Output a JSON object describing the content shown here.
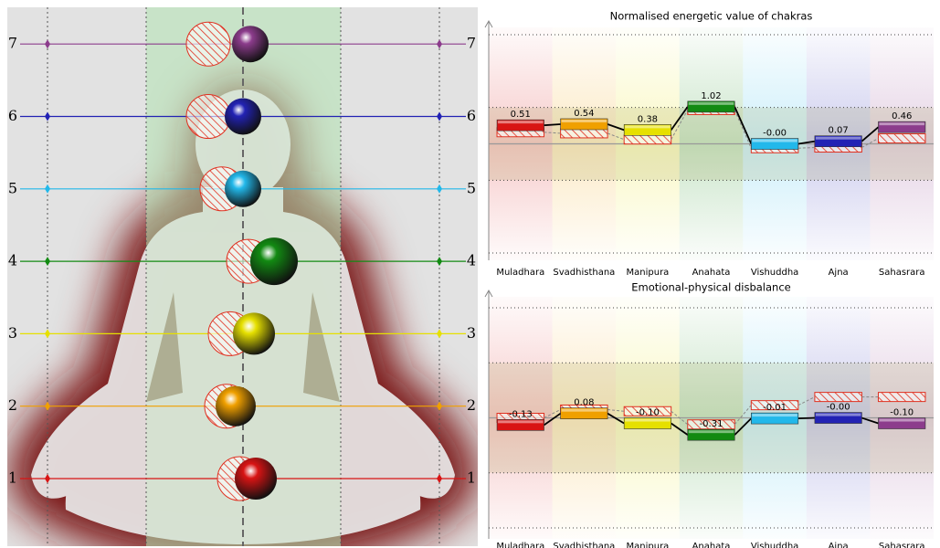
{
  "figure": {
    "levels": [
      1,
      2,
      3,
      4,
      5,
      6,
      7
    ]
  },
  "chart_data": [
    {
      "type": "bar",
      "title": "Normalised energetic value of chakras",
      "categories": [
        "Muladhara",
        "Svadhisthana",
        "Manipura",
        "Anahata",
        "Vishuddha",
        "Ajna",
        "Sahasrara"
      ],
      "colors": [
        "#d81414",
        "#f0a000",
        "#e6e000",
        "#128a12",
        "#22b8ea",
        "#2222b4",
        "#8c3c8c"
      ],
      "series": [
        {
          "values": [
            0.51,
            0.54,
            0.38,
            1.02,
            -0.001,
            0.07,
            0.46
          ],
          "value_labels": [
            "0.51",
            "0.54",
            "0.38",
            "1.02",
            "-0.00",
            "0.07",
            "0.46"
          ]
        },
        {
          "style": "hatched",
          "values": [
            0.32,
            0.29,
            0.12,
            0.93,
            -0.12,
            -0.1,
            0.15
          ]
        }
      ],
      "ylim": [
        -3.2,
        3.2
      ],
      "yticks": [
        -3,
        -1,
        0,
        1,
        3
      ],
      "grid": true
    },
    {
      "type": "bar",
      "title": "Emotional-physical disbalance",
      "categories": [
        "Muladhara",
        "Svadhisthana",
        "Manipura",
        "Anahata",
        "Vishuddha",
        "Ajna",
        "Sahasrara"
      ],
      "colors": [
        "#d81414",
        "#f0a000",
        "#e6e000",
        "#128a12",
        "#22b8ea",
        "#2222b4",
        "#8c3c8c"
      ],
      "series": [
        {
          "values": [
            -0.13,
            0.08,
            -0.1,
            -0.31,
            -0.01,
            -0.001,
            -0.1
          ],
          "value_labels": [
            "-0.13",
            "0.08",
            "-0.10",
            "-0.31",
            "-0.01",
            "-0.00",
            "-0.10"
          ]
        },
        {
          "style": "hatched",
          "values": [
            0.0,
            0.15,
            0.12,
            -0.12,
            0.23,
            0.38,
            0.38
          ]
        }
      ],
      "ylim": [
        -2.2,
        2.2
      ],
      "yticks": [
        -2,
        -1,
        0,
        1,
        2
      ],
      "grid": true
    }
  ]
}
